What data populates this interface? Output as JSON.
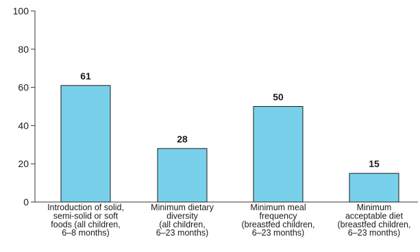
{
  "chart_data": {
    "type": "bar",
    "categories": [
      [
        "Introduction of solid,",
        "semi-solid or soft",
        "foods (all children,",
        "6–8 months)"
      ],
      [
        "Minimum dietary",
        "diversity",
        "(all children,",
        "6–23 months)"
      ],
      [
        "Minimum meal",
        "frequency",
        "(breastfed children,",
        "6–23 months)"
      ],
      [
        "Minimum",
        "acceptable diet",
        "(breastfed children,",
        "6–23 months)"
      ]
    ],
    "values": [
      61,
      28,
      50,
      15
    ],
    "data_labels": [
      "61",
      "28",
      "50",
      "15"
    ],
    "yticks": [
      0,
      20,
      40,
      60,
      80,
      100
    ],
    "ylim": [
      0,
      100
    ],
    "grid": false,
    "legend": "none",
    "colors": {
      "bar_fill": "#79D0EA",
      "bar_stroke": "#1a1a1a",
      "axis": "#333333",
      "text": "#1a1a1a"
    }
  }
}
